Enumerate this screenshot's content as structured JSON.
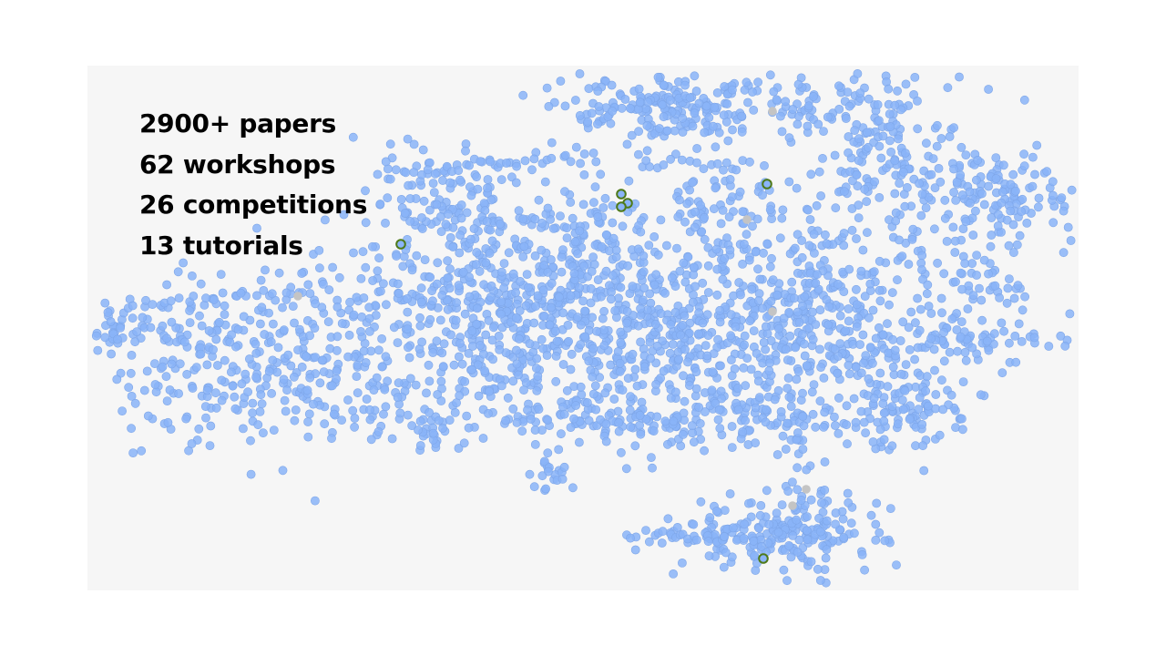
{
  "stats": [
    "2900+ papers",
    "62 workshops",
    "26 competitions",
    "13 tutorials"
  ],
  "colors": {
    "background": "#ffffff",
    "panel": "#f6f6f6",
    "point_fill": "#8ab4f8",
    "point_stroke": "#7ea6e8",
    "highlight_ring": "#4f7a1a",
    "muted_point": "#c4c4c4"
  },
  "legend_icons": {
    "paper": "blue-dot",
    "highlight": "green-ring",
    "other": "gray-dot"
  }
}
